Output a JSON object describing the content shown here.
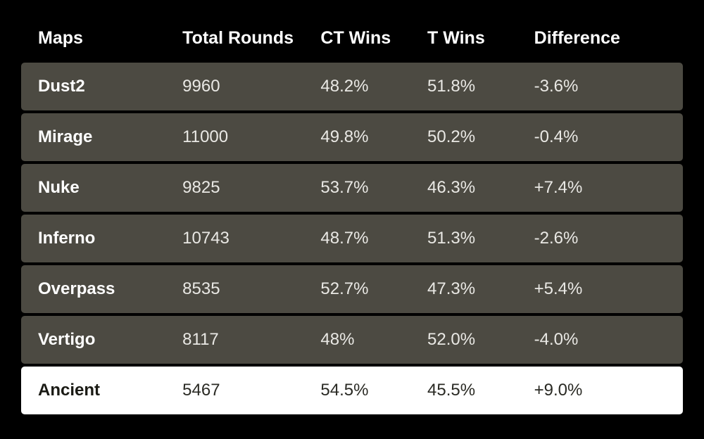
{
  "table": {
    "type": "table",
    "background_color": "#000000",
    "row_background_color": "#4c4a42",
    "highlighted_row_background_color": "#ffffff",
    "header_text_color": "#ffffff",
    "cell_text_color": "#e9e8e4",
    "highlighted_cell_text_color": "#2a2a24",
    "header_fontsize": 25,
    "cell_fontsize": 24,
    "row_border_radius": 5,
    "row_gap": 4,
    "columns": [
      {
        "key": "maps",
        "label": "Maps",
        "width_pct": 23,
        "bold_cells": true
      },
      {
        "key": "total_rounds",
        "label": "Total Rounds",
        "width_pct": 22
      },
      {
        "key": "ct_wins",
        "label": "CT Wins",
        "width_pct": 17
      },
      {
        "key": "t_wins",
        "label": "T Wins",
        "width_pct": 17
      },
      {
        "key": "difference",
        "label": "Difference",
        "width_pct": 21
      }
    ],
    "rows": [
      {
        "maps": "Dust2",
        "total_rounds": "9960",
        "ct_wins": "48.2%",
        "t_wins": "51.8%",
        "difference": "-3.6%",
        "highlighted": false
      },
      {
        "maps": "Mirage",
        "total_rounds": "11000",
        "ct_wins": "49.8%",
        "t_wins": "50.2%",
        "difference": "-0.4%",
        "highlighted": false
      },
      {
        "maps": "Nuke",
        "total_rounds": "9825",
        "ct_wins": "53.7%",
        "t_wins": "46.3%",
        "difference": "+7.4%",
        "highlighted": false
      },
      {
        "maps": "Inferno",
        "total_rounds": "10743",
        "ct_wins": "48.7%",
        "t_wins": "51.3%",
        "difference": "-2.6%",
        "highlighted": false
      },
      {
        "maps": "Overpass",
        "total_rounds": "8535",
        "ct_wins": "52.7%",
        "t_wins": "47.3%",
        "difference": "+5.4%",
        "highlighted": false
      },
      {
        "maps": "Vertigo",
        "total_rounds": "8117",
        "ct_wins": "48%",
        "t_wins": "52.0%",
        "difference": "-4.0%",
        "highlighted": false
      },
      {
        "maps": "Ancient",
        "total_rounds": "5467",
        "ct_wins": "54.5%",
        "t_wins": "45.5%",
        "difference": "+9.0%",
        "highlighted": true
      }
    ]
  }
}
